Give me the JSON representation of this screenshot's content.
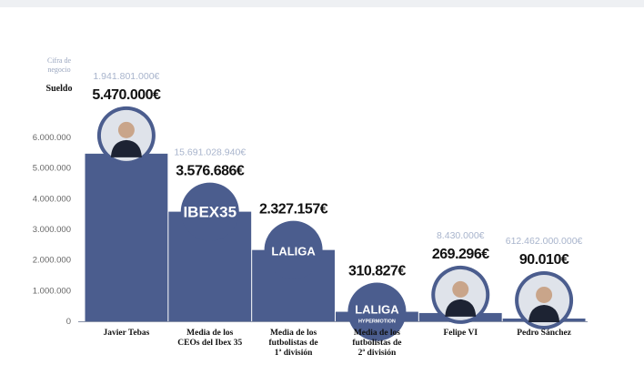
{
  "legend": {
    "turnover_label": "Cifra de negocio",
    "salary_label": "Sueldo"
  },
  "colors": {
    "bar": "#4b5d8e",
    "turnover_text": "#a8b4cc",
    "salary_text": "#111111",
    "axis_text": "#666666",
    "circle": "#4b5d8e",
    "portrait_bg": "#dfe3ea"
  },
  "chart_data": {
    "type": "bar",
    "title": "",
    "xlabel": "",
    "ylabel": "",
    "ylim": [
      0,
      6000000
    ],
    "ytick_labels": [
      "0",
      "1.000.000",
      "2.000.000",
      "3.000.000",
      "4.000.000",
      "5.000.000",
      "6.000.000"
    ],
    "ytick_values": [
      0,
      1000000,
      2000000,
      3000000,
      4000000,
      5000000,
      6000000
    ],
    "grid": false,
    "categories": [
      [
        "Javier Tebas"
      ],
      [
        "Media de los",
        "CEOs del Ibex 35"
      ],
      [
        "Media de los",
        "futbolistas de",
        "1ª división"
      ],
      [
        "Media de los",
        "futbolistas de",
        "2ª división"
      ],
      [
        "Felipe VI"
      ],
      [
        "Pedro Sánchez"
      ]
    ],
    "series": [
      {
        "values": [
          5470000,
          3576686,
          2327157,
          310827,
          269296,
          90010
        ]
      }
    ],
    "value_labels": [
      "5.470.000€",
      "3.576.686€",
      "2.327.157€",
      "310.827€",
      "269.296€",
      "90.010€"
    ],
    "turnover_labels": [
      "1.941.801.000€",
      "15.691.028.940€",
      "",
      "",
      "8.430.000€",
      "612.462.000.000€"
    ],
    "markers": [
      {
        "kind": "portrait",
        "icon": "javier-tebas-portrait"
      },
      {
        "kind": "logo",
        "text": "IBEX35",
        "icon": "ibex35-logo"
      },
      {
        "kind": "logo",
        "text": "LALIGA",
        "icon": "laliga-logo"
      },
      {
        "kind": "logo",
        "text": "LALIGA",
        "subtext": "HYPERMOTION",
        "icon": "laliga-hypermotion-logo"
      },
      {
        "kind": "portrait",
        "icon": "felipe-vi-portrait"
      },
      {
        "kind": "portrait",
        "icon": "pedro-sanchez-portrait"
      }
    ]
  }
}
